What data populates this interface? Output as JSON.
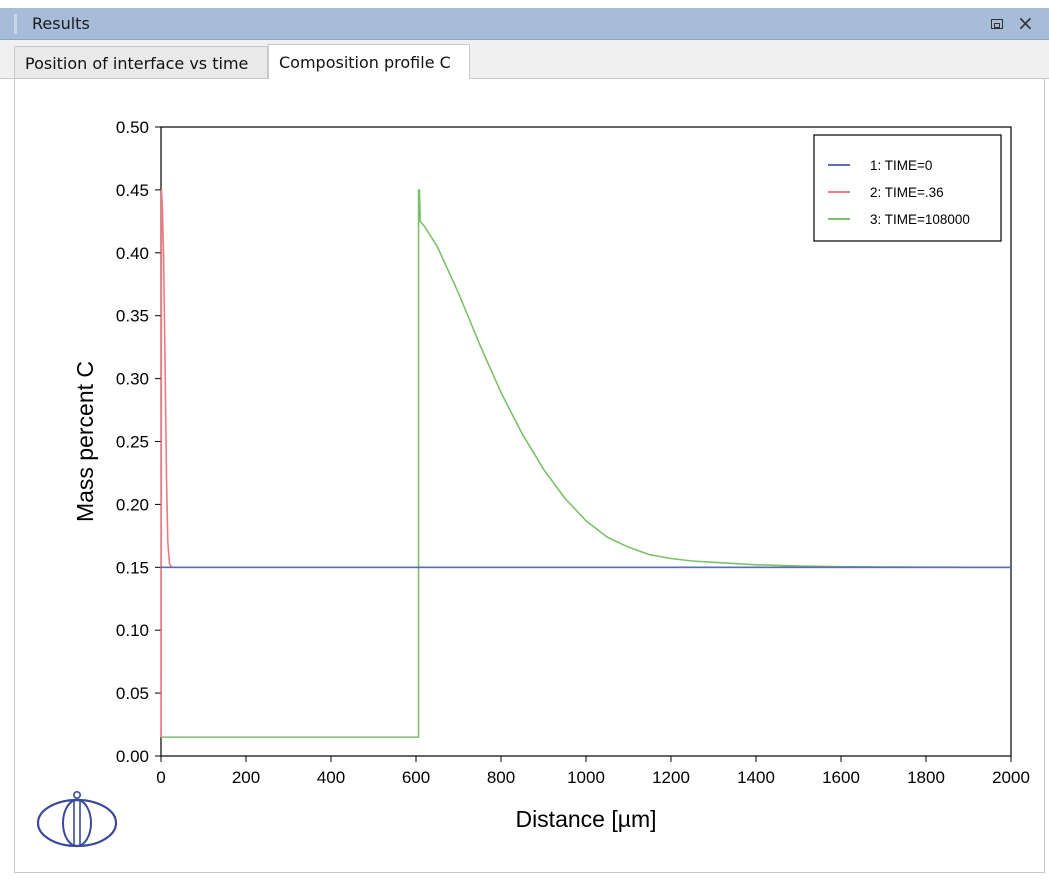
{
  "window": {
    "title": "Results"
  },
  "tabs": [
    {
      "label": "Position of interface vs time"
    },
    {
      "label": "Composition profile C"
    }
  ],
  "colors": {
    "series1": "#5a6fb3",
    "series2": "#f07a82",
    "series3": "#7cc16a",
    "logo": "#3a4a9a",
    "titlebar": "#a6bcd9"
  },
  "chart_data": {
    "type": "line",
    "title": "",
    "xlabel": "Distance [µm]",
    "ylabel": "Mass percent C",
    "xlim": [
      0,
      2000
    ],
    "ylim": [
      0,
      0.5
    ],
    "xticks": [
      0,
      200,
      400,
      600,
      800,
      1000,
      1200,
      1400,
      1600,
      1800,
      2000
    ],
    "yticks": [
      0.0,
      0.05,
      0.1,
      0.15,
      0.2,
      0.25,
      0.3,
      0.35,
      0.4,
      0.45,
      0.5
    ],
    "xtick_labels": [
      "0",
      "200",
      "400",
      "600",
      "800",
      "1000",
      "1200",
      "1400",
      "1600",
      "1800",
      "2000"
    ],
    "ytick_labels": [
      "0.00",
      "0.05",
      "0.10",
      "0.15",
      "0.20",
      "0.25",
      "0.30",
      "0.35",
      "0.40",
      "0.45",
      "0.50"
    ],
    "grid": false,
    "legend_position": "top-right",
    "series": [
      {
        "name": "1:  TIME=0",
        "color": "#5a6fb3",
        "x": [
          0,
          2000
        ],
        "y": [
          0.15,
          0.15
        ]
      },
      {
        "name": "2:  TIME=.36",
        "color": "#f07a82",
        "x": [
          0,
          0.5,
          1,
          3,
          6,
          10,
          13,
          16,
          20,
          25,
          35,
          2000
        ],
        "y": [
          0.015,
          0.015,
          0.45,
          0.44,
          0.4,
          0.3,
          0.22,
          0.17,
          0.153,
          0.15,
          0.15,
          0.15
        ]
      },
      {
        "name": "3:  TIME=108000",
        "color": "#7cc16a",
        "x": [
          0,
          606,
          606,
          608,
          610,
          620,
          650,
          700,
          750,
          800,
          850,
          900,
          950,
          1000,
          1050,
          1100,
          1150,
          1200,
          1250,
          1300,
          1400,
          1500,
          1600,
          1700,
          1800,
          1900,
          2000
        ],
        "y": [
          0.015,
          0.015,
          0.45,
          0.45,
          0.425,
          0.421,
          0.405,
          0.368,
          0.327,
          0.289,
          0.256,
          0.228,
          0.205,
          0.187,
          0.174,
          0.166,
          0.16,
          0.157,
          0.155,
          0.154,
          0.152,
          0.151,
          0.1505,
          0.1502,
          0.1501,
          0.15,
          0.15
        ]
      }
    ]
  }
}
